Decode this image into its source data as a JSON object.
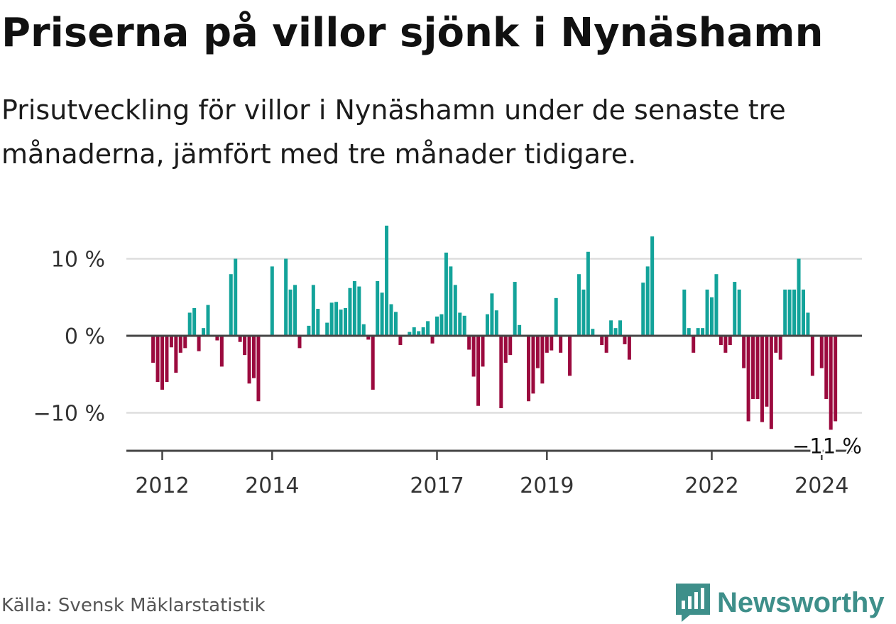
{
  "header": {
    "title": "Priserna på villor sjönk i Nynäshamn",
    "subtitle": "Prisutveckling för villor i Nynäshamn under de senaste tre månaderna, jämfört med tre månader tidigare."
  },
  "footer": {
    "source": "Källa: Svensk Mäklarstatistik",
    "logo_text": "Newsworthy"
  },
  "colors": {
    "positive": "#13a39a",
    "negative": "#9b0a3e",
    "gridline": "#dddddd",
    "axis": "#444444"
  },
  "chart_data": {
    "type": "bar",
    "title": "Priserna på villor sjönk i Nynäshamn",
    "xlabel": "",
    "ylabel": "",
    "unit": "%",
    "ylim": [
      -15,
      15
    ],
    "yticks": [
      {
        "value": 10,
        "label": "10 %"
      },
      {
        "value": 0,
        "label": "0 %"
      },
      {
        "value": -10,
        "label": "−10 %"
      }
    ],
    "xticks": [
      {
        "year": 2012,
        "label": "2012"
      },
      {
        "year": 2014,
        "label": "2014"
      },
      {
        "year": 2017,
        "label": "2017"
      },
      {
        "year": 2019,
        "label": "2019"
      },
      {
        "year": 2022,
        "label": "2022"
      },
      {
        "year": 2024,
        "label": "2024"
      }
    ],
    "start": {
      "year": 2011,
      "month": 11
    },
    "last_label": "−11 %",
    "values": [
      -3.5,
      -6,
      -7,
      -6,
      -1.5,
      -4.8,
      -2.2,
      -1.6,
      3,
      3.6,
      -2,
      1,
      4,
      0,
      -0.6,
      -4,
      0,
      8,
      10,
      -0.8,
      -2.5,
      -6.2,
      -5.5,
      -8.5,
      0,
      0,
      9,
      0,
      0,
      10,
      6,
      6.6,
      -1.6,
      0,
      1.3,
      6.6,
      3.5,
      0,
      1.7,
      4.3,
      4.4,
      3.4,
      3.6,
      6.2,
      7.1,
      6.4,
      1.5,
      -0.5,
      -7,
      7.1,
      5.6,
      14.3,
      4.1,
      3.1,
      -1.2,
      0,
      0.5,
      1.1,
      0.6,
      1.1,
      1.9,
      -1,
      2.5,
      2.8,
      10.8,
      9,
      6.6,
      3,
      2.6,
      -1.8,
      -5.3,
      -9.1,
      -4,
      2.8,
      5.5,
      3.3,
      -9.4,
      -3.5,
      -2.5,
      7,
      1.4,
      0,
      -8.5,
      -7.5,
      -4.2,
      -6.2,
      -2.2,
      -1.9,
      4.9,
      -2.2,
      0,
      -5.2,
      0,
      8,
      6,
      10.9,
      0.9,
      0,
      -1.2,
      -2.2,
      2,
      1,
      2,
      -1.1,
      -3.1,
      0,
      0,
      6.9,
      9,
      12.9,
      0,
      0,
      0,
      0,
      0,
      0,
      6,
      1,
      -2.2,
      1,
      1,
      6,
      5,
      8,
      -1.2,
      -2.2,
      -1.2,
      7,
      6,
      -4.2,
      -11.1,
      -8.2,
      -8.2,
      -11.2,
      -9.2,
      -12.1,
      -2.2,
      -3.1,
      6,
      6,
      6,
      10,
      6,
      3,
      -5.2,
      0,
      -4.2,
      -8.2,
      -12.2,
      -11.1
    ]
  }
}
